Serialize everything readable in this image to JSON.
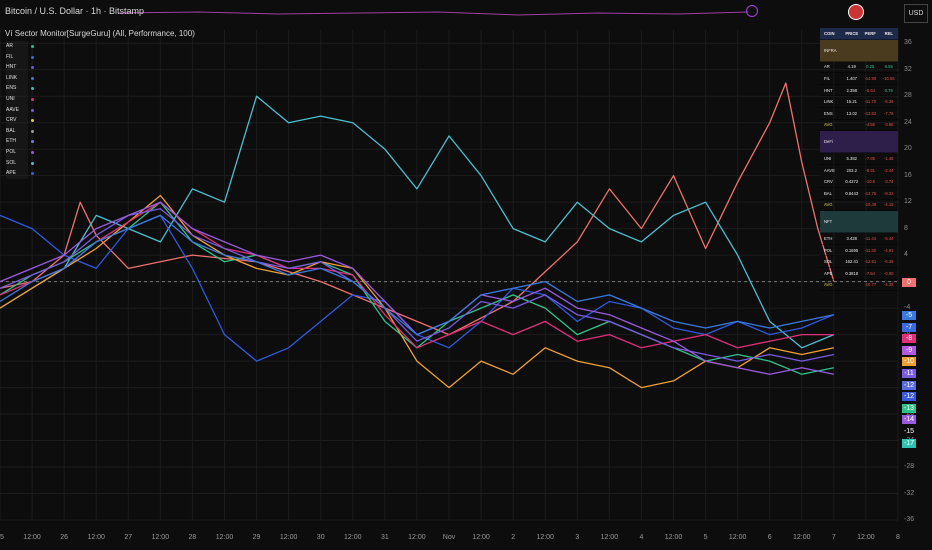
{
  "header": {
    "symbol_title": "Bitcoin / U.S. Dollar · 1h · Bitstamp",
    "indicator_title": "Ví Sector Monitor[SurgeGuru] (All, Performance, 100)",
    "currency": "USD"
  },
  "legend": [
    {
      "label": "AR",
      "color": "#2ec28a"
    },
    {
      "label": "FIL",
      "color": "#3a6ae0"
    },
    {
      "label": "HNT",
      "color": "#6a5ae0"
    },
    {
      "label": "LINK",
      "color": "#3a7ae0"
    },
    {
      "label": "ENS",
      "color": "#2ec2b0"
    },
    {
      "label": "UNI",
      "color": "#e0307a"
    },
    {
      "label": "AAVE",
      "color": "#7a5ae0"
    },
    {
      "label": "CRV",
      "color": "#e0d030"
    },
    {
      "label": "BAL",
      "color": "#9a9a9a"
    },
    {
      "label": "ETH",
      "color": "#7a7ae0"
    },
    {
      "label": "POL",
      "color": "#9a5ae0"
    },
    {
      "label": "SOL",
      "color": "#4ac0d0"
    },
    {
      "label": "APE",
      "color": "#3a5ae0"
    }
  ],
  "sector_table": {
    "headers": [
      "COIN",
      "PRICE",
      "PERF",
      "REL"
    ],
    "sections": [
      {
        "name": "INFRA",
        "class": "sec-infra",
        "rows": [
          [
            "AR",
            "4.19",
            "0.25",
            "6.55"
          ],
          [
            "FIL",
            "1.407",
            "-14.90",
            "-10.56"
          ],
          [
            "HNT",
            "2.358",
            "-5.64",
            "0.76"
          ],
          [
            "LINK",
            "15.21",
            "-11.70",
            "-5.36"
          ],
          [
            "ENS",
            "13.02",
            "-13.82",
            "-7.76"
          ]
        ],
        "avg": [
          "AVG",
          "",
          "-4.56",
          "-3.66"
        ]
      },
      {
        "name": "DeFi",
        "class": "sec-defi",
        "rows": [
          [
            "UNI",
            "5.382",
            "-7.85",
            "-1.48"
          ],
          [
            "AAVE",
            "203.2",
            "-8.91",
            "-2.44"
          ],
          [
            "CRV",
            "0.4372",
            "-10.6",
            "-3.74"
          ],
          [
            "BAL",
            "0.8443",
            "-14.70",
            "-8.32"
          ]
        ],
        "avg": [
          "AVG",
          "",
          "-10.49",
          "-4.15"
        ]
      },
      {
        "name": "NFT",
        "class": "sec-nft",
        "rows": [
          [
            "ETH",
            "3.428",
            "-11.44",
            "-5.44"
          ],
          [
            "POL",
            "0.1695",
            "-11.30",
            "-4.91"
          ],
          [
            "SOL",
            "162.41",
            "-12.81",
            "-6.38"
          ],
          [
            "APE",
            "0.3818",
            "-7.54",
            "-0.90"
          ]
        ],
        "avg": [
          "AVG",
          "",
          "-10.77",
          "-4.38"
        ]
      }
    ]
  },
  "chart_data": {
    "type": "line",
    "ylim": [
      -36,
      38
    ],
    "y_ticks": [
      36,
      32,
      28,
      24,
      20,
      16,
      12,
      8,
      4,
      0,
      -4,
      -8,
      -12,
      -16,
      -20,
      -24,
      -28,
      -32,
      -36
    ],
    "x_ticks": [
      "25",
      "12:00",
      "26",
      "12:00",
      "27",
      "12:00",
      "28",
      "12:00",
      "29",
      "12:00",
      "30",
      "12:00",
      "31",
      "12:00",
      "Nov",
      "12:00",
      "2",
      "12:00",
      "3",
      "12:00",
      "4",
      "12:00",
      "5",
      "12:00",
      "6",
      "12:00",
      "7",
      "12:00",
      "8"
    ],
    "x_range": [
      0,
      28
    ],
    "zero_line": 0,
    "last_value_badges": [
      {
        "value": "0",
        "color": "#f07070"
      },
      {
        "value": "-5",
        "color": "#3a7ae0"
      },
      {
        "value": "-7",
        "color": "#3a6ae0"
      },
      {
        "value": "-8",
        "color": "#e0307a"
      },
      {
        "value": "-9",
        "color": "#b05ae0"
      },
      {
        "value": "-10",
        "color": "#f0a030"
      },
      {
        "value": "-11",
        "color": "#7a5ae0"
      },
      {
        "value": "-12",
        "color": "#5a6ae0"
      },
      {
        "value": "-12",
        "color": "#3a5ae0"
      },
      {
        "value": "-13",
        "color": "#2ec28a"
      },
      {
        "value": "-14",
        "color": "#9a5ae0"
      },
      {
        "value": "-15",
        "color": "#0d0d0d"
      },
      {
        "value": "-17",
        "color": "#2ec2b0"
      }
    ],
    "series": [
      {
        "color": "#f07070",
        "points": [
          [
            0,
            -1
          ],
          [
            1,
            0
          ],
          [
            2,
            4
          ],
          [
            2.5,
            12
          ],
          [
            3,
            7
          ],
          [
            4,
            2
          ],
          [
            6,
            4
          ],
          [
            8,
            3
          ],
          [
            10,
            0
          ],
          [
            12,
            -4
          ],
          [
            14,
            -8
          ],
          [
            16,
            -3
          ],
          [
            18,
            6
          ],
          [
            19,
            14
          ],
          [
            20,
            8
          ],
          [
            21,
            16
          ],
          [
            22,
            5
          ],
          [
            23,
            15
          ],
          [
            24,
            24
          ],
          [
            24.5,
            30
          ],
          [
            25,
            18
          ],
          [
            25.5,
            8
          ],
          [
            26,
            0
          ]
        ]
      },
      {
        "color": "#4ac0d0",
        "points": [
          [
            0,
            -4
          ],
          [
            2,
            2
          ],
          [
            3,
            10
          ],
          [
            4,
            8
          ],
          [
            5,
            6
          ],
          [
            6,
            14
          ],
          [
            7,
            12
          ],
          [
            8,
            28
          ],
          [
            9,
            24
          ],
          [
            10,
            25
          ],
          [
            11,
            24
          ],
          [
            12,
            20
          ],
          [
            13,
            14
          ],
          [
            14,
            22
          ],
          [
            15,
            16
          ],
          [
            16,
            8
          ],
          [
            17,
            6
          ],
          [
            18,
            12
          ],
          [
            19,
            8
          ],
          [
            20,
            6
          ],
          [
            21,
            10
          ],
          [
            22,
            12
          ],
          [
            23,
            4
          ],
          [
            24,
            -6
          ],
          [
            25,
            -10
          ],
          [
            26,
            -8
          ]
        ]
      },
      {
        "color": "#2e5ae0",
        "points": [
          [
            0,
            10
          ],
          [
            1,
            8
          ],
          [
            2,
            4
          ],
          [
            3,
            2
          ],
          [
            4,
            8
          ],
          [
            5,
            10
          ],
          [
            6,
            2
          ],
          [
            7,
            -8
          ],
          [
            8,
            -12
          ],
          [
            9,
            -10
          ],
          [
            10,
            -6
          ],
          [
            11,
            -2
          ],
          [
            12,
            -3
          ],
          [
            13,
            -8
          ],
          [
            14,
            -10
          ],
          [
            15,
            -6
          ],
          [
            16,
            -1
          ],
          [
            17,
            -2
          ],
          [
            18,
            -6
          ],
          [
            19,
            -3
          ],
          [
            20,
            -4
          ],
          [
            21,
            -7
          ],
          [
            22,
            -8
          ],
          [
            23,
            -6
          ],
          [
            24,
            -8
          ],
          [
            25,
            -7
          ],
          [
            26,
            -5
          ]
        ]
      },
      {
        "color": "#2ec28a",
        "points": [
          [
            0,
            -2
          ],
          [
            1,
            1
          ],
          [
            2,
            3
          ],
          [
            3,
            6
          ],
          [
            4,
            8
          ],
          [
            5,
            12
          ],
          [
            6,
            6
          ],
          [
            7,
            3
          ],
          [
            8,
            4
          ],
          [
            9,
            2
          ],
          [
            10,
            3
          ],
          [
            11,
            1
          ],
          [
            12,
            -6
          ],
          [
            13,
            -10
          ],
          [
            14,
            -6
          ],
          [
            15,
            -4
          ],
          [
            16,
            -2
          ],
          [
            17,
            -4
          ],
          [
            18,
            -8
          ],
          [
            19,
            -6
          ],
          [
            20,
            -8
          ],
          [
            21,
            -10
          ],
          [
            22,
            -12
          ],
          [
            23,
            -11
          ],
          [
            24,
            -12
          ],
          [
            25,
            -14
          ],
          [
            26,
            -13
          ]
        ]
      },
      {
        "color": "#f0a030",
        "points": [
          [
            0,
            -4
          ],
          [
            1,
            -1
          ],
          [
            2,
            2
          ],
          [
            3,
            5
          ],
          [
            4,
            9
          ],
          [
            5,
            13
          ],
          [
            6,
            7
          ],
          [
            7,
            4
          ],
          [
            8,
            2
          ],
          [
            9,
            1
          ],
          [
            10,
            3
          ],
          [
            11,
            2
          ],
          [
            12,
            -4
          ],
          [
            13,
            -12
          ],
          [
            14,
            -16
          ],
          [
            15,
            -12
          ],
          [
            16,
            -14
          ],
          [
            17,
            -10
          ],
          [
            18,
            -12
          ],
          [
            19,
            -13
          ],
          [
            20,
            -16
          ],
          [
            21,
            -15
          ],
          [
            22,
            -12
          ],
          [
            23,
            -13
          ],
          [
            24,
            -10
          ],
          [
            25,
            -11
          ],
          [
            26,
            -10
          ]
        ]
      },
      {
        "color": "#e0307a",
        "points": [
          [
            0,
            -2
          ],
          [
            1,
            0
          ],
          [
            2,
            2
          ],
          [
            3,
            6
          ],
          [
            4,
            9
          ],
          [
            5,
            12
          ],
          [
            6,
            8
          ],
          [
            7,
            5
          ],
          [
            8,
            4
          ],
          [
            9,
            2
          ],
          [
            10,
            2
          ],
          [
            11,
            1
          ],
          [
            12,
            -5
          ],
          [
            13,
            -10
          ],
          [
            14,
            -8
          ],
          [
            15,
            -6
          ],
          [
            16,
            -8
          ],
          [
            17,
            -6
          ],
          [
            18,
            -9
          ],
          [
            19,
            -8
          ],
          [
            20,
            -10
          ],
          [
            21,
            -9
          ],
          [
            22,
            -8
          ],
          [
            23,
            -10
          ],
          [
            24,
            -9
          ],
          [
            25,
            -8
          ],
          [
            26,
            -8
          ]
        ]
      },
      {
        "color": "#7a5ae0",
        "points": [
          [
            0,
            -1
          ],
          [
            1,
            1
          ],
          [
            2,
            3
          ],
          [
            3,
            7
          ],
          [
            4,
            10
          ],
          [
            5,
            11
          ],
          [
            6,
            7
          ],
          [
            7,
            5
          ],
          [
            8,
            3
          ],
          [
            9,
            2
          ],
          [
            10,
            3
          ],
          [
            11,
            0
          ],
          [
            12,
            -4
          ],
          [
            13,
            -9
          ],
          [
            14,
            -7
          ],
          [
            15,
            -3
          ],
          [
            16,
            -4
          ],
          [
            17,
            -2
          ],
          [
            18,
            -5
          ],
          [
            19,
            -6
          ],
          [
            20,
            -8
          ],
          [
            21,
            -10
          ],
          [
            22,
            -11
          ],
          [
            23,
            -12
          ],
          [
            24,
            -11
          ],
          [
            25,
            -12
          ],
          [
            26,
            -11
          ]
        ]
      },
      {
        "color": "#9a5ae0",
        "points": [
          [
            0,
            0
          ],
          [
            1,
            2
          ],
          [
            2,
            4
          ],
          [
            3,
            8
          ],
          [
            4,
            10
          ],
          [
            5,
            12
          ],
          [
            6,
            8
          ],
          [
            7,
            6
          ],
          [
            8,
            4
          ],
          [
            9,
            3
          ],
          [
            10,
            4
          ],
          [
            11,
            2
          ],
          [
            12,
            -3
          ],
          [
            13,
            -8
          ],
          [
            14,
            -6
          ],
          [
            15,
            -2
          ],
          [
            16,
            -3
          ],
          [
            17,
            -1
          ],
          [
            18,
            -4
          ],
          [
            19,
            -5
          ],
          [
            20,
            -7
          ],
          [
            21,
            -9
          ],
          [
            22,
            -12
          ],
          [
            23,
            -13
          ],
          [
            24,
            -14
          ],
          [
            25,
            -13
          ],
          [
            26,
            -14
          ]
        ]
      },
      {
        "color": "#3a7ae0",
        "points": [
          [
            0,
            -3
          ],
          [
            1,
            0
          ],
          [
            2,
            2
          ],
          [
            3,
            6
          ],
          [
            4,
            8
          ],
          [
            5,
            10
          ],
          [
            6,
            6
          ],
          [
            7,
            4
          ],
          [
            8,
            3
          ],
          [
            9,
            1
          ],
          [
            10,
            2
          ],
          [
            11,
            0
          ],
          [
            12,
            -4
          ],
          [
            13,
            -8
          ],
          [
            14,
            -6
          ],
          [
            15,
            -2
          ],
          [
            16,
            -1
          ],
          [
            17,
            0
          ],
          [
            18,
            -3
          ],
          [
            19,
            -2
          ],
          [
            20,
            -4
          ],
          [
            21,
            -6
          ],
          [
            22,
            -7
          ],
          [
            23,
            -6
          ],
          [
            24,
            -7
          ],
          [
            25,
            -6
          ],
          [
            26,
            -5
          ]
        ]
      }
    ]
  }
}
